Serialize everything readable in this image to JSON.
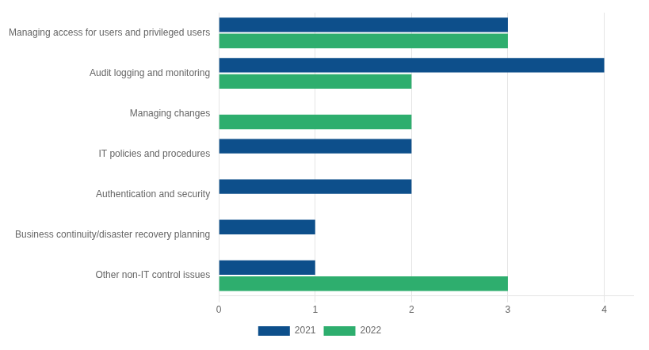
{
  "chart_data": {
    "type": "bar",
    "orientation": "horizontal",
    "categories": [
      "Managing access for users and privileged users",
      "Audit logging and monitoring",
      "Managing changes",
      "IT policies and procedures",
      "Authentication and security",
      "Business continuity/disaster recovery planning",
      "Other non-IT control issues"
    ],
    "series": [
      {
        "name": "2021",
        "color": "#0d4f8b",
        "values": [
          3,
          4,
          0,
          2,
          2,
          1,
          1
        ]
      },
      {
        "name": "2022",
        "color": "#2eae6e",
        "values": [
          3,
          2,
          2,
          0,
          0,
          0,
          3
        ]
      }
    ],
    "xlim": [
      0,
      4.3
    ],
    "xticks": [
      0,
      1,
      2,
      3,
      4
    ],
    "grid": true,
    "legend": "bottom"
  }
}
